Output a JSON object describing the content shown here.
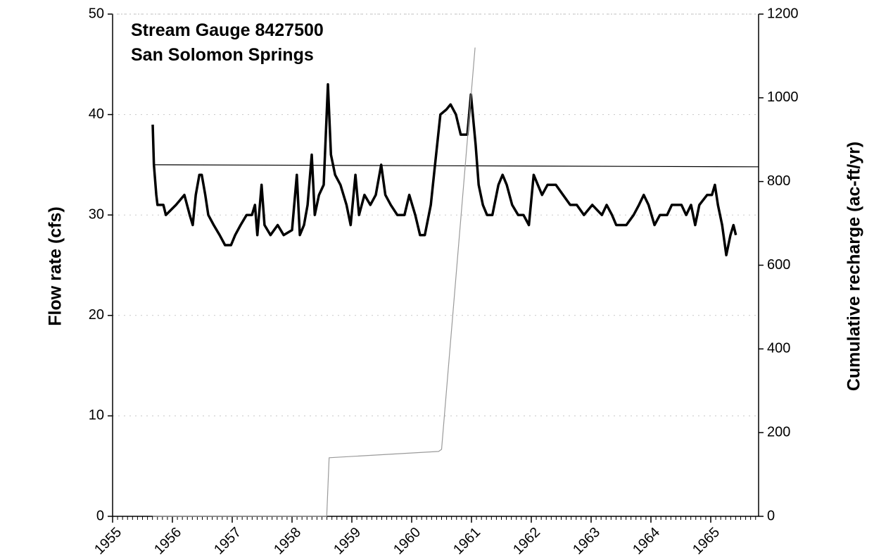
{
  "chart_data": {
    "type": "line",
    "title": [
      "Stream Gauge 8427500",
      "San Solomon Springs"
    ],
    "y_label": "Flow rate (cfs)",
    "y2_label": "Cumulative recharge (ac-ft/yr)",
    "xlim": [
      1955,
      1965.8
    ],
    "xticks": [
      1955,
      1956,
      1957,
      1958,
      1959,
      1960,
      1961,
      1962,
      1963,
      1964,
      1965
    ],
    "ylim": [
      0,
      50
    ],
    "yticks": [
      0,
      10,
      20,
      30,
      40,
      50
    ],
    "y2lim": [
      0,
      1200
    ],
    "y2ticks": [
      0,
      200,
      400,
      600,
      800,
      1000,
      1200
    ],
    "grid": true,
    "series": [
      {
        "color": "#000000",
        "width": 3.5,
        "axis": "y",
        "x": [
          1955.67,
          1955.69,
          1955.73,
          1955.75,
          1955.85,
          1955.89,
          1956.06,
          1956.2,
          1956.29,
          1956.34,
          1956.39,
          1956.45,
          1956.49,
          1956.55,
          1956.6,
          1956.69,
          1956.79,
          1956.88,
          1956.98,
          1957.05,
          1957.14,
          1957.24,
          1957.33,
          1957.38,
          1957.42,
          1957.49,
          1957.54,
          1957.64,
          1957.76,
          1957.86,
          1958.0,
          1958.08,
          1958.13,
          1958.2,
          1958.26,
          1958.33,
          1958.38,
          1958.45,
          1958.53,
          1958.6,
          1958.65,
          1958.72,
          1958.81,
          1958.91,
          1958.98,
          1959.06,
          1959.12,
          1959.21,
          1959.31,
          1959.4,
          1959.49,
          1959.56,
          1959.65,
          1959.76,
          1959.88,
          1959.96,
          1960.06,
          1960.14,
          1960.22,
          1960.32,
          1960.39,
          1960.48,
          1960.58,
          1960.65,
          1960.74,
          1960.82,
          1960.93,
          1960.99,
          1961.07,
          1961.12,
          1961.19,
          1961.26,
          1961.35,
          1961.45,
          1961.52,
          1961.59,
          1961.68,
          1961.78,
          1961.87,
          1961.96,
          1962.04,
          1962.11,
          1962.18,
          1962.27,
          1962.41,
          1962.53,
          1962.65,
          1962.76,
          1962.88,
          1963.02,
          1963.18,
          1963.26,
          1963.35,
          1963.42,
          1963.59,
          1963.71,
          1963.8,
          1963.88,
          1963.96,
          1964.06,
          1964.15,
          1964.27,
          1964.35,
          1964.51,
          1964.59,
          1964.67,
          1964.74,
          1964.81,
          1964.94,
          1965.02,
          1965.07,
          1965.12,
          1965.19,
          1965.26,
          1965.33,
          1965.38,
          1965.42
        ],
        "values": [
          39,
          35,
          32,
          31,
          31,
          30,
          31,
          32,
          30,
          29,
          32,
          34,
          34,
          32,
          30,
          29,
          28,
          27,
          27,
          28,
          29,
          30,
          30,
          31,
          28,
          33,
          29,
          28,
          29,
          28,
          28.5,
          34,
          28,
          29,
          31,
          36,
          30,
          32,
          33,
          43,
          36,
          34,
          33,
          31,
          29,
          34,
          30,
          32,
          31,
          32,
          35,
          32,
          31,
          30,
          30,
          32,
          30,
          28,
          28,
          31,
          35,
          40,
          40.5,
          41,
          40,
          38,
          38,
          42,
          37,
          33,
          31,
          30,
          30,
          33,
          34,
          33,
          31,
          30,
          30,
          29,
          34,
          33,
          32,
          33,
          33,
          32,
          31,
          31,
          30,
          31,
          30,
          31,
          30,
          29,
          29,
          30,
          31,
          32,
          31,
          29,
          30,
          30,
          31,
          31,
          30,
          31,
          29,
          31,
          32,
          32,
          33,
          31,
          29,
          26,
          28,
          29,
          28
        ]
      },
      {
        "color": "#000000",
        "width": 1.2,
        "axis": "y",
        "x": [
          1955.67,
          1965.8
        ],
        "values": [
          35,
          34.8
        ]
      },
      {
        "color": "#9a9a9a",
        "width": 1.2,
        "axis": "y2",
        "x": [
          1955.67,
          1958.58,
          1958.62,
          1960.45,
          1960.5,
          1961.06
        ],
        "values": [
          0,
          0,
          140,
          155,
          160,
          1120
        ]
      }
    ]
  }
}
